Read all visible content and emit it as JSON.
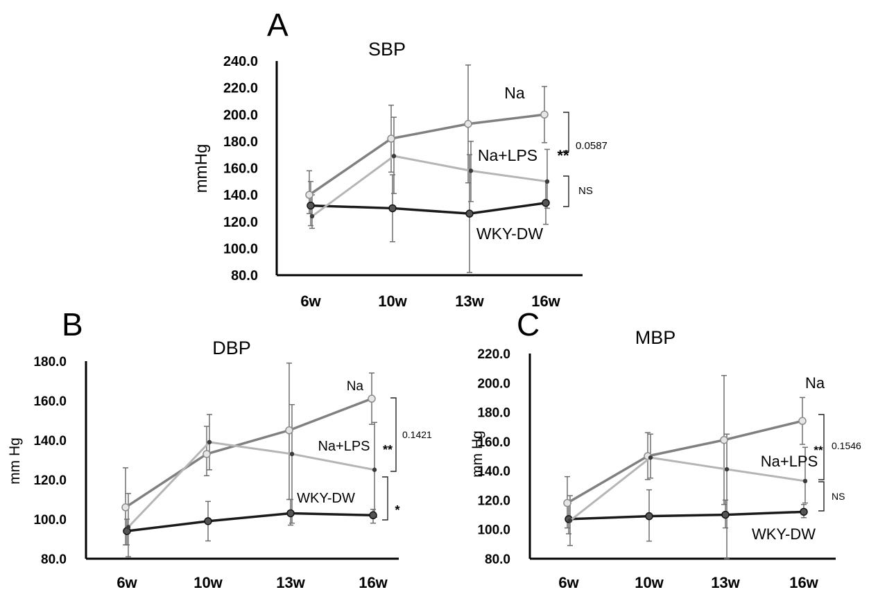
{
  "colors": {
    "na": "#808080",
    "na_lps": "#b5b5b5",
    "wky": "#1a1a1a",
    "axis": "#000000",
    "err": "#6e6e6e"
  },
  "chart_data": [
    {
      "id": "A",
      "panel_letter": "A",
      "type": "line",
      "title": "SBP",
      "xlabel": "",
      "ylabel": "mmHg",
      "categories": [
        "6w",
        "10w",
        "13w",
        "16w"
      ],
      "ylim": [
        80,
        240
      ],
      "yticks": [
        "80.0",
        "100.0",
        "120.0",
        "140.0",
        "160.0",
        "180.0",
        "200.0",
        "220.0",
        "240.0"
      ],
      "series": [
        {
          "key": "na",
          "name": "Na",
          "values": [
            140,
            182,
            193,
            200
          ],
          "err_lo": [
            126,
            157,
            149,
            179
          ],
          "err_hi": [
            158,
            207,
            237,
            221
          ]
        },
        {
          "key": "na_lps",
          "name": "Na+LPS",
          "values": [
            124,
            169,
            158,
            150
          ],
          "err_lo": [
            115,
            141,
            135,
            130
          ],
          "err_hi": [
            140,
            198,
            180,
            174
          ]
        },
        {
          "key": "wky",
          "name": "WKY-DW",
          "values": [
            132,
            130,
            126,
            134
          ],
          "err_lo": [
            117,
            105,
            82,
            118
          ],
          "err_hi": [
            150,
            155,
            170,
            150
          ]
        }
      ],
      "series_labels": [
        "Na",
        "Na+LPS",
        "WKY-DW"
      ],
      "significance": [
        {
          "text": "**",
          "text2": "0.0587"
        },
        {
          "text": "NS"
        }
      ]
    },
    {
      "id": "B",
      "panel_letter": "B",
      "type": "line",
      "title": "DBP",
      "xlabel": "",
      "ylabel": "mm Hg",
      "categories": [
        "6w",
        "10w",
        "13w",
        "16w"
      ],
      "ylim": [
        80,
        180
      ],
      "yticks": [
        "80.0",
        "100.0",
        "120.0",
        "140.0",
        "160.0",
        "180.0"
      ],
      "series": [
        {
          "key": "na",
          "name": "Na",
          "values": [
            106,
            133,
            145,
            161
          ],
          "err_lo": [
            87,
            122,
            110,
            148
          ],
          "err_hi": [
            126,
            147,
            179,
            174
          ]
        },
        {
          "key": "na_lps",
          "name": "Na+LPS",
          "values": [
            96,
            139,
            133,
            125
          ],
          "err_lo": [
            81,
            125,
            98,
            101
          ],
          "err_hi": [
            113,
            153,
            158,
            149
          ]
        },
        {
          "key": "wky",
          "name": "WKY-DW",
          "values": [
            94,
            99,
            103,
            102
          ],
          "err_lo": [
            87,
            89,
            97,
            98
          ],
          "err_hi": [
            100,
            109,
            110,
            105
          ]
        }
      ],
      "series_labels": [
        "Na",
        "Na+LPS",
        "WKY-DW"
      ],
      "significance": [
        {
          "text": "**",
          "text2": "0.1421"
        },
        {
          "text": "*"
        }
      ]
    },
    {
      "id": "C",
      "panel_letter": "C",
      "type": "line",
      "title": "MBP",
      "xlabel": "",
      "ylabel": "mm Hg",
      "categories": [
        "6w",
        "10w",
        "13w",
        "16w"
      ],
      "ylim": [
        80,
        220
      ],
      "yticks": [
        "80.0",
        "100.0",
        "120.0",
        "140.0",
        "160.0",
        "180.0",
        "200.0",
        "220.0"
      ],
      "series": [
        {
          "key": "na",
          "name": "Na",
          "values": [
            118,
            150,
            161,
            174
          ],
          "err_lo": [
            101,
            134,
            117,
            158
          ],
          "err_hi": [
            136,
            166,
            205,
            190
          ]
        },
        {
          "key": "na_lps",
          "name": "Na+LPS",
          "values": [
            106,
            149,
            141,
            133
          ],
          "err_lo": [
            89,
            135,
            80,
            118
          ],
          "err_hi": [
            123,
            165,
            165,
            156
          ]
        },
        {
          "key": "wky",
          "name": "WKY-DW",
          "values": [
            107,
            109,
            110,
            112
          ],
          "err_lo": [
            97,
            92,
            101,
            108
          ],
          "err_hi": [
            118,
            127,
            120,
            117
          ]
        }
      ],
      "series_labels": [
        "Na",
        "Na+LPS",
        "WKY-DW"
      ],
      "significance": [
        {
          "text": "**",
          "text2": "0.1546"
        },
        {
          "text": "NS"
        }
      ]
    }
  ]
}
